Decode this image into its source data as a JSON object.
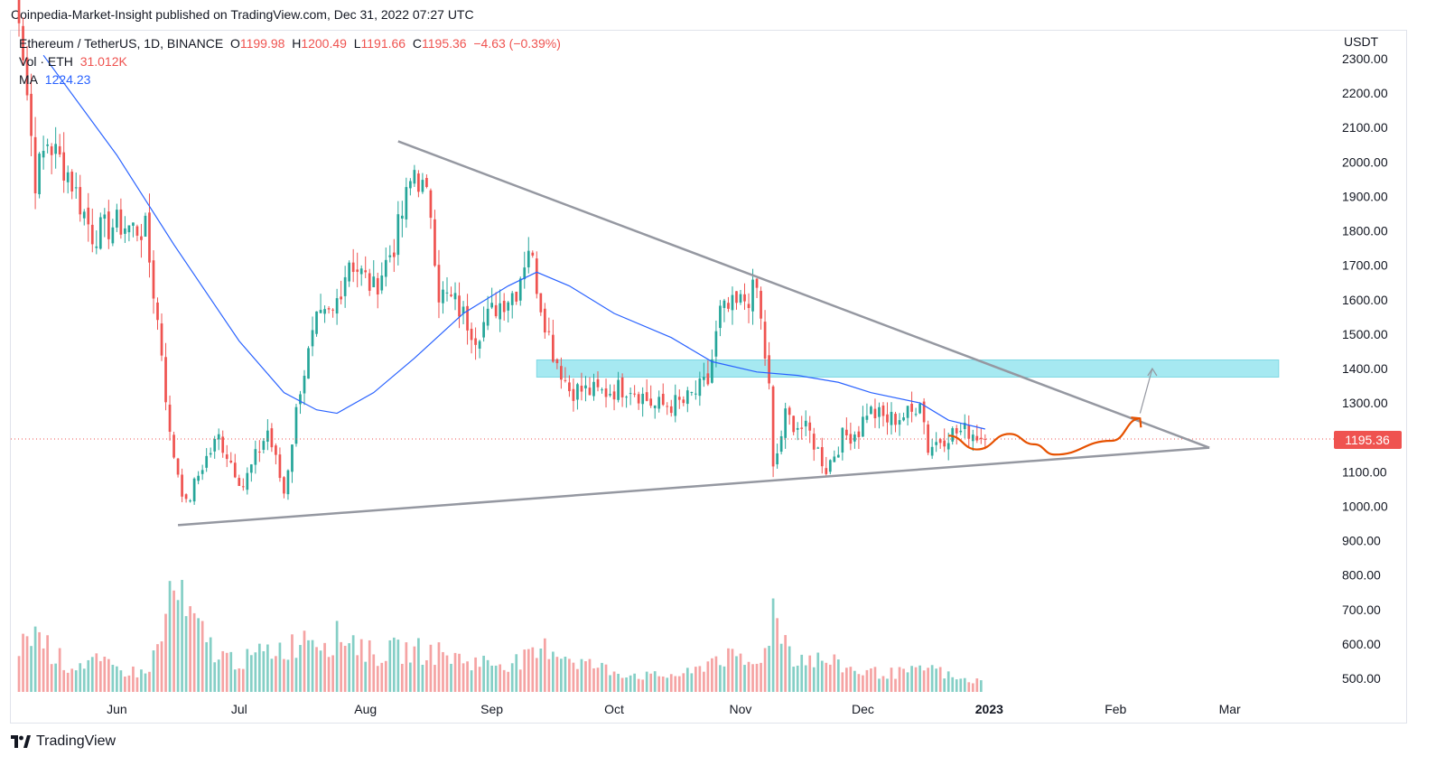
{
  "header": {
    "published": "Coinpedia-Market-Insight published on TradingView.com, Dec 31, 2022 07:27 UTC"
  },
  "legend": {
    "symbol": "Ethereum / TetherUS, 1D, BINANCE",
    "open_label": "O",
    "open": "1199.98",
    "high_label": "H",
    "high": "1200.49",
    "low_label": "L",
    "low": "1191.66",
    "close_label": "C",
    "close": "1195.36",
    "change": "−4.63 (−0.39%)",
    "vol_label": "Vol · ETH",
    "vol": "31.012K",
    "ma_label": "MA",
    "ma": "1224.23"
  },
  "price_axis_unit": "USDT",
  "last_price_tag": "1195.36",
  "footer": {
    "brand": "TradingView"
  },
  "colors": {
    "up": "#26a69a",
    "down": "#ef5350",
    "vol_up": "#85cfc6",
    "vol_down": "#f5a3a3",
    "ma": "#2962ff",
    "zone": "#a6e9f1",
    "trendline": "#9598a1",
    "projection": "#e65100"
  },
  "chart_data": {
    "type": "candlestick",
    "symbol": "ETHUSDT",
    "interval": "1D",
    "y_ticks": [
      "2300.00",
      "2200.00",
      "2100.00",
      "2000.00",
      "1900.00",
      "1800.00",
      "1700.00",
      "1600.00",
      "1500.00",
      "1400.00",
      "1300.00",
      "1200.00",
      "1100.00",
      "1000.00",
      "900.00",
      "800.00",
      "700.00",
      "600.00",
      "500.00"
    ],
    "ylim": [
      460,
      2350
    ],
    "x_ticks": [
      {
        "label": "Jun",
        "date": "2022-06-01"
      },
      {
        "label": "Jul",
        "date": "2022-07-01"
      },
      {
        "label": "Aug",
        "date": "2022-08-01"
      },
      {
        "label": "Sep",
        "date": "2022-09-01"
      },
      {
        "label": "Oct",
        "date": "2022-10-01"
      },
      {
        "label": "Nov",
        "date": "2022-11-01"
      },
      {
        "label": "Dec",
        "date": "2022-12-01"
      },
      {
        "label": "2023",
        "date": "2023-01-01"
      },
      {
        "label": "Feb",
        "date": "2023-02-01"
      },
      {
        "label": "Mar",
        "date": "2023-03-01"
      }
    ],
    "x_start": "2022-05-06",
    "x_end": "2023-03-25",
    "last_price": 1195.36,
    "ma_last": 1224.23,
    "close_points": [
      [
        "2022-05-06",
        2700
      ],
      [
        "2022-05-12",
        1950
      ],
      [
        "2022-05-15",
        2060
      ],
      [
        "2022-05-20",
        1970
      ],
      [
        "2022-05-26",
        1790
      ],
      [
        "2022-06-01",
        1820
      ],
      [
        "2022-06-08",
        1800
      ],
      [
        "2022-06-12",
        1450
      ],
      [
        "2022-06-14",
        1200
      ],
      [
        "2022-06-18",
        1000
      ],
      [
        "2022-06-22",
        1120
      ],
      [
        "2022-06-26",
        1200
      ],
      [
        "2022-07-02",
        1060
      ],
      [
        "2022-07-08",
        1220
      ],
      [
        "2022-07-12",
        1040
      ],
      [
        "2022-07-16",
        1350
      ],
      [
        "2022-07-20",
        1530
      ],
      [
        "2022-07-24",
        1560
      ],
      [
        "2022-07-28",
        1720
      ],
      [
        "2022-08-03",
        1630
      ],
      [
        "2022-08-08",
        1760
      ],
      [
        "2022-08-13",
        1980
      ],
      [
        "2022-08-17",
        1860
      ],
      [
        "2022-08-19",
        1620
      ],
      [
        "2022-08-23",
        1590
      ],
      [
        "2022-08-28",
        1500
      ],
      [
        "2022-09-02",
        1580
      ],
      [
        "2022-09-07",
        1630
      ],
      [
        "2022-09-10",
        1760
      ],
      [
        "2022-09-13",
        1590
      ],
      [
        "2022-09-16",
        1450
      ],
      [
        "2022-09-20",
        1340
      ],
      [
        "2022-09-28",
        1330
      ],
      [
        "2022-10-05",
        1350
      ],
      [
        "2022-10-11",
        1290
      ],
      [
        "2022-10-18",
        1300
      ],
      [
        "2022-10-24",
        1360
      ],
      [
        "2022-10-27",
        1560
      ],
      [
        "2022-10-31",
        1580
      ],
      [
        "2022-11-05",
        1630
      ],
      [
        "2022-11-08",
        1340
      ],
      [
        "2022-11-09",
        1100
      ],
      [
        "2022-11-12",
        1260
      ],
      [
        "2022-11-18",
        1210
      ],
      [
        "2022-11-22",
        1110
      ],
      [
        "2022-11-26",
        1200
      ],
      [
        "2022-11-30",
        1220
      ],
      [
        "2022-12-02",
        1280
      ],
      [
        "2022-12-07",
        1250
      ],
      [
        "2022-12-13",
        1270
      ],
      [
        "2022-12-15",
        1320
      ],
      [
        "2022-12-17",
        1170
      ],
      [
        "2022-12-22",
        1210
      ],
      [
        "2022-12-27",
        1220
      ],
      [
        "2022-12-31",
        1195.36
      ]
    ],
    "ma_points": [
      [
        "2022-05-14",
        2310
      ],
      [
        "2022-06-01",
        2020
      ],
      [
        "2022-06-15",
        1760
      ],
      [
        "2022-07-01",
        1480
      ],
      [
        "2022-07-12",
        1330
      ],
      [
        "2022-07-20",
        1280
      ],
      [
        "2022-07-25",
        1270
      ],
      [
        "2022-08-03",
        1330
      ],
      [
        "2022-08-13",
        1430
      ],
      [
        "2022-08-25",
        1560
      ],
      [
        "2022-09-05",
        1640
      ],
      [
        "2022-09-12",
        1680
      ],
      [
        "2022-09-20",
        1640
      ],
      [
        "2022-10-01",
        1560
      ],
      [
        "2022-10-15",
        1490
      ],
      [
        "2022-10-25",
        1420
      ],
      [
        "2022-11-05",
        1390
      ],
      [
        "2022-11-15",
        1380
      ],
      [
        "2022-11-25",
        1360
      ],
      [
        "2022-12-03",
        1330
      ],
      [
        "2022-12-15",
        1300
      ],
      [
        "2022-12-22",
        1250
      ],
      [
        "2022-12-31",
        1224.23
      ]
    ],
    "volume_points": [
      [
        "2022-05-08",
        0.35
      ],
      [
        "2022-05-10",
        0.55
      ],
      [
        "2022-05-12",
        0.6
      ],
      [
        "2022-05-16",
        0.4
      ],
      [
        "2022-05-20",
        0.25
      ],
      [
        "2022-05-26",
        0.3
      ],
      [
        "2022-06-01",
        0.22
      ],
      [
        "2022-06-08",
        0.18
      ],
      [
        "2022-06-12",
        0.5
      ],
      [
        "2022-06-14",
        0.95
      ],
      [
        "2022-06-15",
        1.0
      ],
      [
        "2022-06-18",
        0.75
      ],
      [
        "2022-06-22",
        0.55
      ],
      [
        "2022-06-26",
        0.35
      ],
      [
        "2022-07-02",
        0.3
      ],
      [
        "2022-07-08",
        0.4
      ],
      [
        "2022-07-14",
        0.45
      ],
      [
        "2022-07-18",
        0.6
      ],
      [
        "2022-07-22",
        0.5
      ],
      [
        "2022-07-28",
        0.55
      ],
      [
        "2022-08-03",
        0.35
      ],
      [
        "2022-08-08",
        0.4
      ],
      [
        "2022-08-14",
        0.4
      ],
      [
        "2022-08-19",
        0.38
      ],
      [
        "2022-08-26",
        0.3
      ],
      [
        "2022-09-02",
        0.28
      ],
      [
        "2022-09-08",
        0.3
      ],
      [
        "2022-09-12",
        0.35
      ],
      [
        "2022-09-15",
        0.45
      ],
      [
        "2022-09-22",
        0.3
      ],
      [
        "2022-10-01",
        0.2
      ],
      [
        "2022-10-10",
        0.15
      ],
      [
        "2022-10-20",
        0.18
      ],
      [
        "2022-10-26",
        0.35
      ],
      [
        "2022-11-01",
        0.3
      ],
      [
        "2022-11-05",
        0.25
      ],
      [
        "2022-11-08",
        0.6
      ],
      [
        "2022-11-09",
        0.8
      ],
      [
        "2022-11-10",
        0.7
      ],
      [
        "2022-11-14",
        0.35
      ],
      [
        "2022-11-22",
        0.3
      ],
      [
        "2022-11-30",
        0.2
      ],
      [
        "2022-12-08",
        0.18
      ],
      [
        "2022-12-15",
        0.2
      ],
      [
        "2022-12-17",
        0.25
      ],
      [
        "2022-12-24",
        0.12
      ],
      [
        "2022-12-31",
        0.1
      ]
    ],
    "vol_scale": {
      "max_value": 1.0
    },
    "annotations": {
      "upper_trendline": [
        [
          "2022-08-09",
          2060
        ],
        [
          "2023-02-24",
          1170
        ]
      ],
      "lower_trendline": [
        [
          "2022-06-16",
          945
        ],
        [
          "2023-02-24",
          1170
        ]
      ],
      "resistance_zone": {
        "from": "2022-09-12",
        "to": "2023-03-13",
        "low": 1375,
        "high": 1425
      },
      "arrow_grey": [
        [
          "2023-02-07",
          1270
        ],
        [
          "2023-02-10",
          1400
        ]
      ],
      "projection_path": [
        [
          "2022-12-22",
          1205
        ],
        [
          "2022-12-29",
          1165
        ],
        [
          "2023-01-06",
          1210
        ],
        [
          "2023-01-12",
          1180
        ],
        [
          "2023-01-17",
          1150
        ],
        [
          "2023-01-31",
          1190
        ],
        [
          "2023-02-07",
          1255
        ]
      ]
    }
  }
}
